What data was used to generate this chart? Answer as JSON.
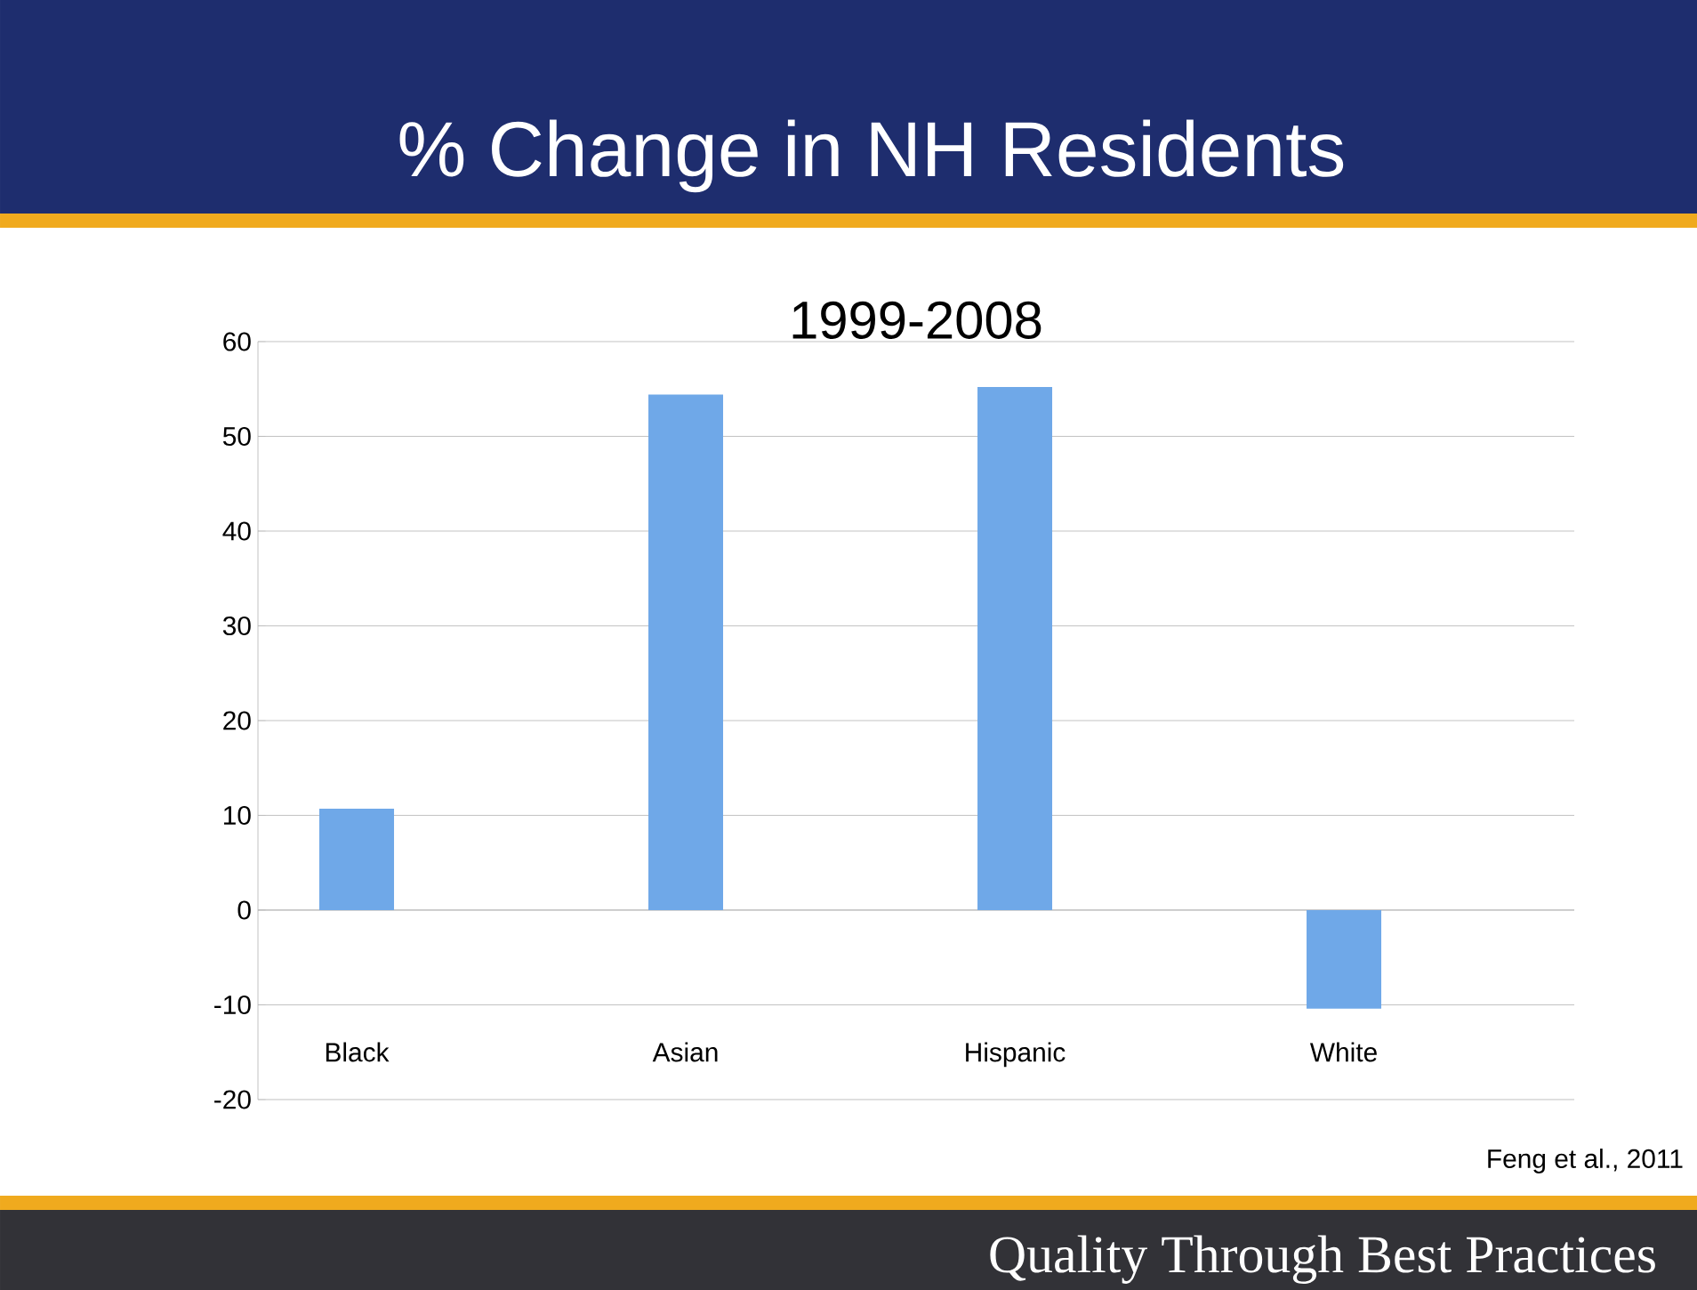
{
  "chart_data": {
    "type": "bar",
    "title": "% Change in NH Residents",
    "subtitle": "1999-2008",
    "categories": [
      "Black",
      "Asian",
      "Hispanic",
      "White"
    ],
    "values": [
      10.7,
      54.4,
      55.2,
      -10.4
    ],
    "color": "#6fa8e8",
    "ylim": [
      -20,
      60
    ],
    "yticks": [
      -20,
      -10,
      0,
      10,
      20,
      30,
      40,
      50,
      60
    ],
    "grid": "y",
    "legend": false,
    "annotations": [
      "Feng et al., 2011",
      "Quality Through Best Practices"
    ]
  }
}
